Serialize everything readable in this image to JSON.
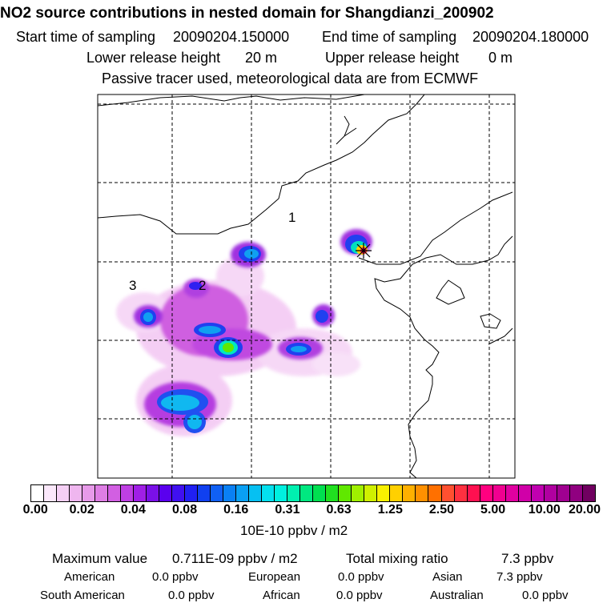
{
  "header": {
    "title": "NO2 source contributions in nested domain for Shangdianzi_200902",
    "start_label": "Start time of sampling",
    "start_value": "20090204.150000",
    "end_label": "End time of sampling",
    "end_value": "20090204.180000",
    "lower_label": "Lower release height",
    "lower_value": "20 m",
    "upper_label": "Upper release height",
    "upper_value": "0 m",
    "tracer_note": "Passive tracer used, meteorological data are from ECMWF"
  },
  "map": {
    "region_labels": [
      "1",
      "2",
      "3"
    ],
    "station_marker": "receptor-star"
  },
  "colorbar": {
    "ticks": [
      "0.00",
      "0.02",
      "0.04",
      "0.08",
      "0.16",
      "0.31",
      "0.63",
      "1.25",
      "2.50",
      "5.00",
      "10.00",
      "20.00"
    ],
    "unit": "10E-10 ppbv / m2",
    "colors": [
      "#ffffff",
      "#fbe8fb",
      "#f5d0f5",
      "#efb6ef",
      "#e79ae9",
      "#de7ee4",
      "#d25fe2",
      "#bf3fe3",
      "#a01fe6",
      "#7a10e8",
      "#5a00ee",
      "#4010f0",
      "#2020f2",
      "#1040f0",
      "#1060f4",
      "#0a80f4",
      "#0aa0f4",
      "#06c0f2",
      "#04e0ee",
      "#00f0e0",
      "#00f0b0",
      "#00e880",
      "#00e050",
      "#20e020",
      "#60e800",
      "#a0f000",
      "#d0f000",
      "#f8f000",
      "#ffd000",
      "#ffb000",
      "#ff9000",
      "#ff7000",
      "#ff5030",
      "#ff3040",
      "#ff1050",
      "#ff0080",
      "#f00090",
      "#e000a0",
      "#d000a8",
      "#c000b0",
      "#b000a0",
      "#a00090",
      "#900080",
      "#700060"
    ]
  },
  "stats": {
    "max_label": "Maximum value",
    "max_value": "0.711E-09 ppbv / m2",
    "total_label": "Total mixing ratio",
    "total_value": "7.3 ppbv",
    "regions": [
      {
        "name": "American",
        "value": "0.0 ppbv"
      },
      {
        "name": "European",
        "value": "0.0 ppbv"
      },
      {
        "name": "Asian",
        "value": "7.3 ppbv"
      },
      {
        "name": "South American",
        "value": "0.0 ppbv"
      },
      {
        "name": "African",
        "value": "0.0 ppbv"
      },
      {
        "name": "Australian",
        "value": "0.0 ppbv"
      }
    ]
  }
}
